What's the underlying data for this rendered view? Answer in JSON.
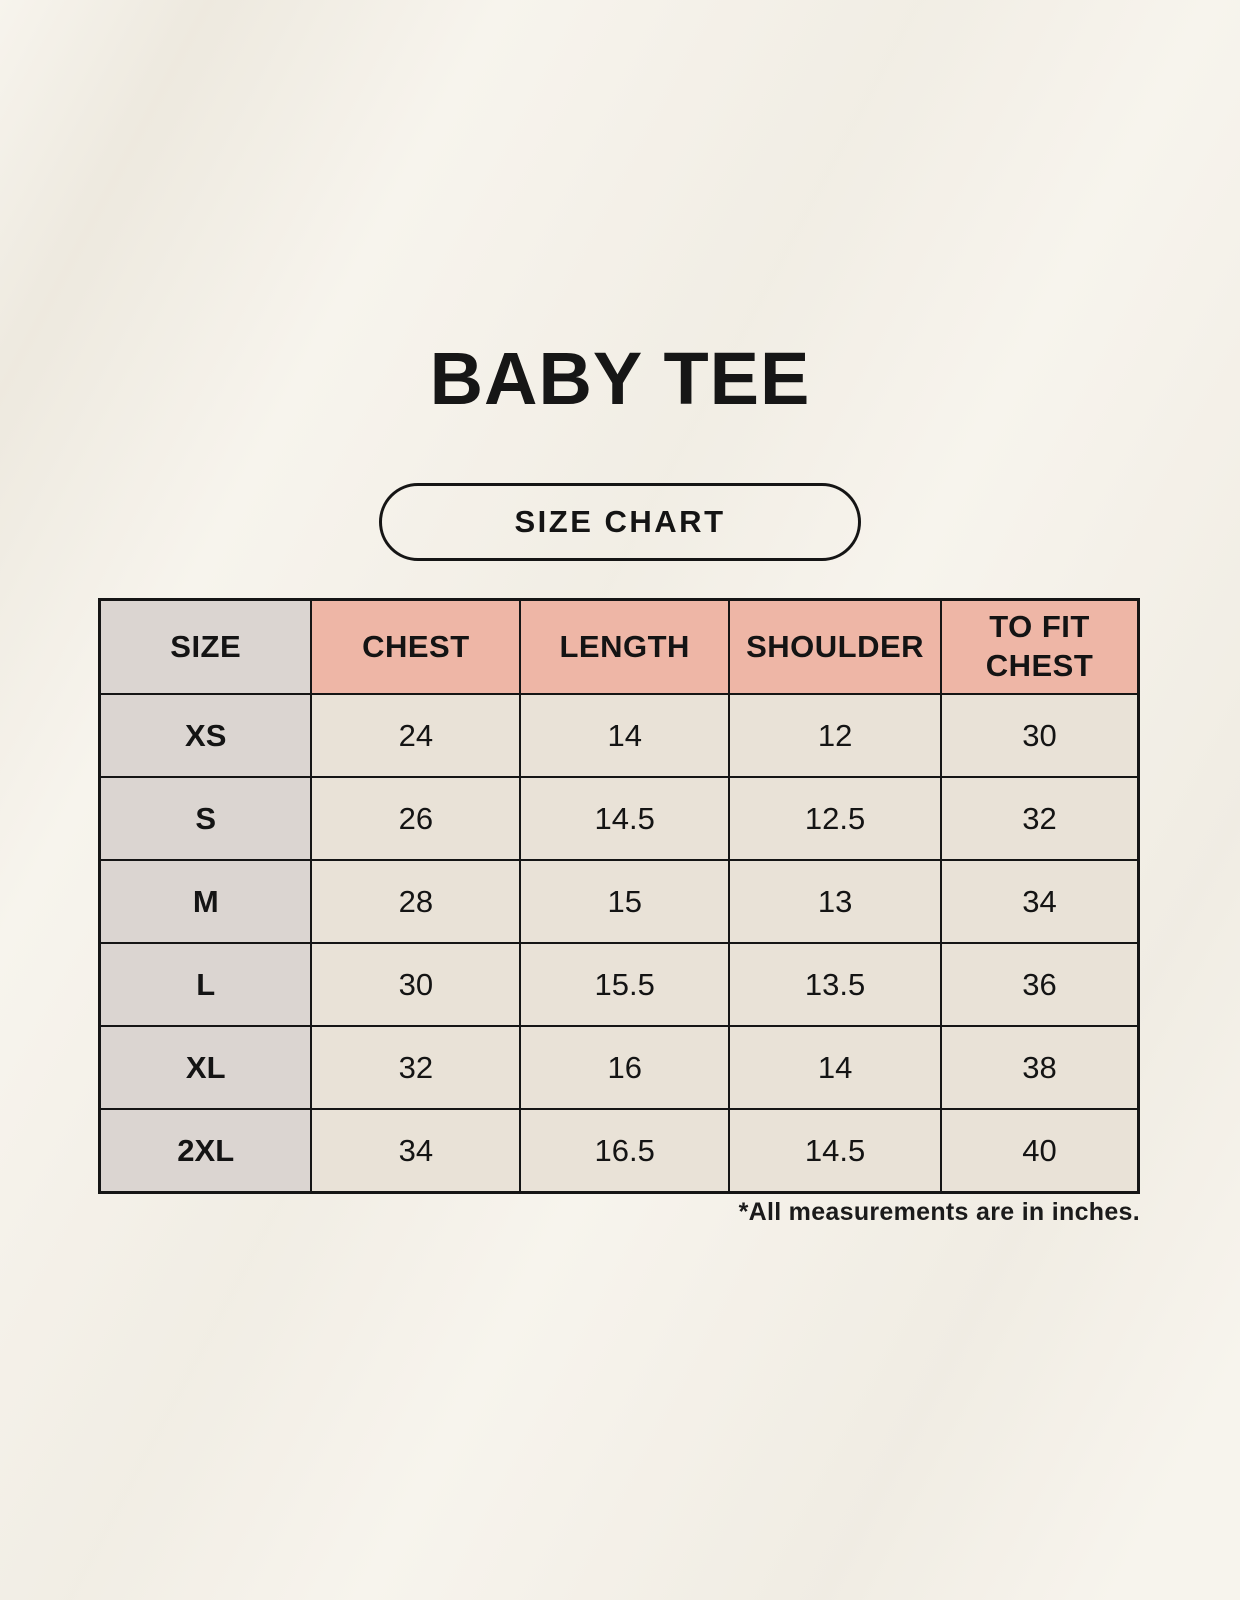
{
  "page": {
    "title": "BABY TEE",
    "badge_label": "SIZE CHART",
    "footnote": "*All measurements are in inches."
  },
  "colors": {
    "background": "#f7f4ed",
    "header_pink": "#eeb6a6",
    "size_column_gray": "#dbd5d1",
    "cell_cream": "#e9e2d7",
    "border_black": "#151515",
    "text": "#141414"
  },
  "chart_data": {
    "type": "table",
    "title": "BABY TEE",
    "subtitle": "SIZE CHART",
    "units": "inches",
    "columns": [
      "SIZE",
      "CHEST",
      "LENGTH",
      "SHOULDER",
      "TO FIT CHEST"
    ],
    "rows": [
      [
        "XS",
        "24",
        "14",
        "12",
        "30"
      ],
      [
        "S",
        "26",
        "14.5",
        "12.5",
        "32"
      ],
      [
        "M",
        "28",
        "15",
        "13",
        "34"
      ],
      [
        "L",
        "30",
        "15.5",
        "13.5",
        "36"
      ],
      [
        "XL",
        "32",
        "16",
        "14",
        "38"
      ],
      [
        "2XL",
        "34",
        "16.5",
        "14.5",
        "40"
      ]
    ],
    "footnote": "*All measurements are in inches."
  }
}
